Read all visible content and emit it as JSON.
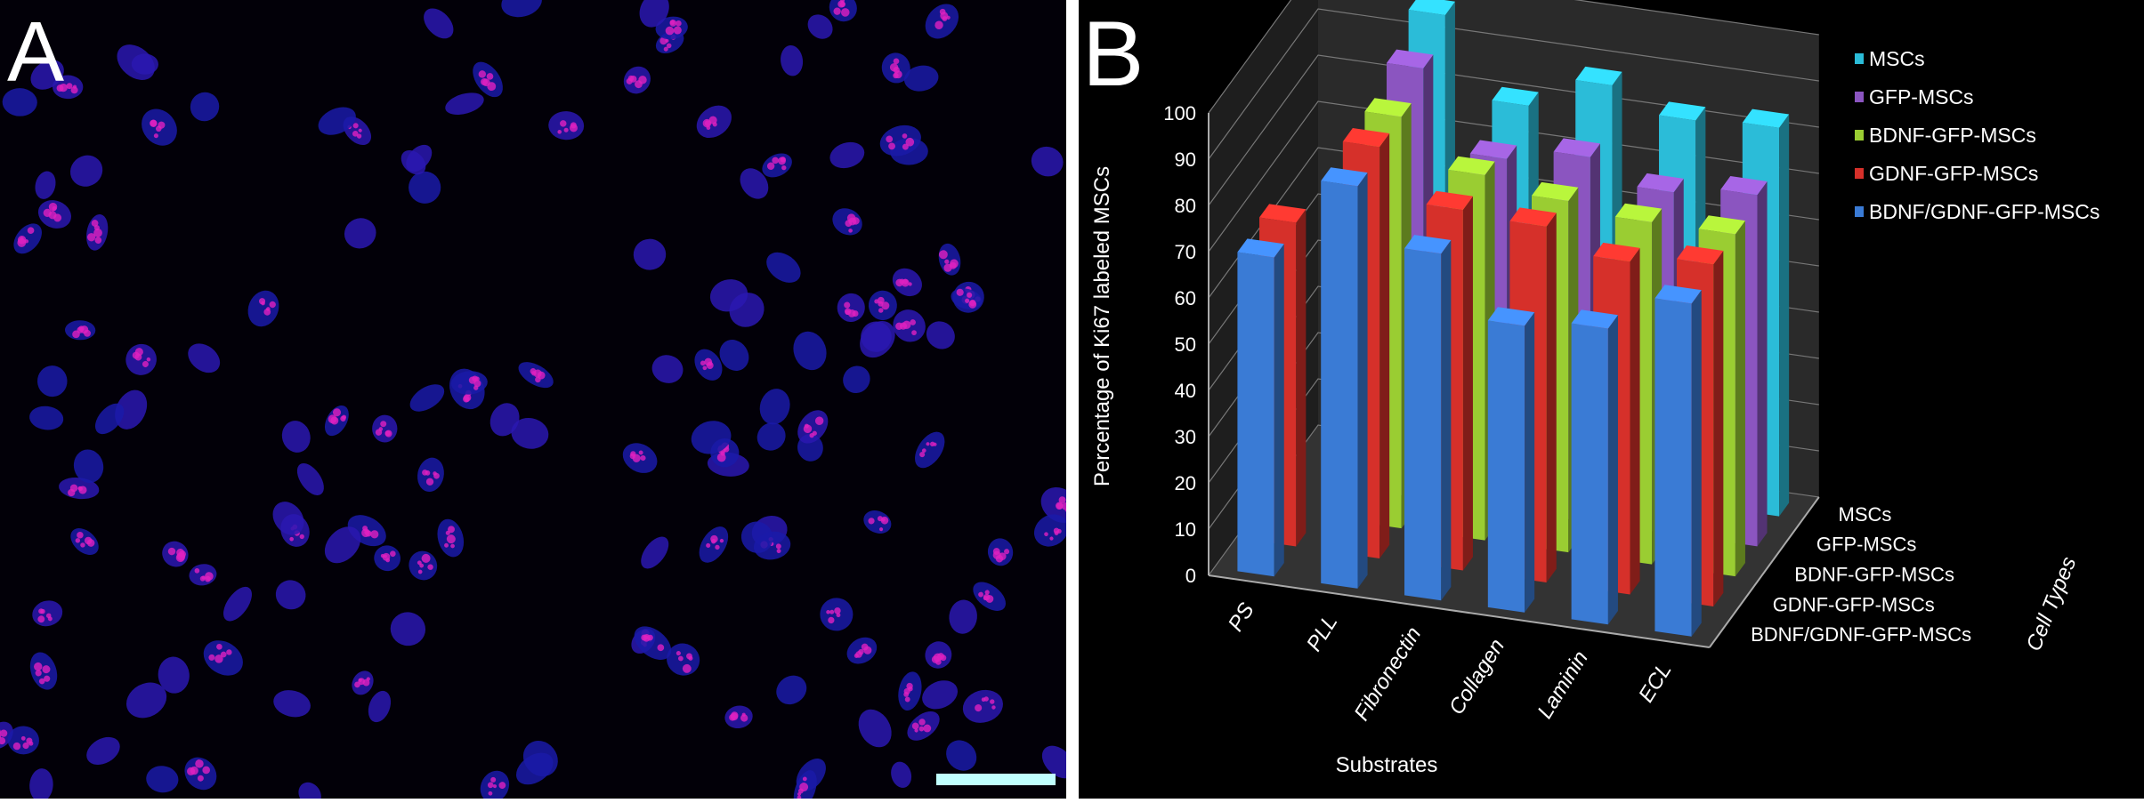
{
  "panel_a": {
    "label": "A",
    "scale_bar_color": "#c0ffff"
  },
  "panel_b": {
    "label": "B"
  },
  "chart_data": {
    "type": "bar",
    "subtype": "3d-clustered",
    "title": "",
    "xlabel": "Substrates",
    "ylabel": "Percentage of Ki67 labeled MSCs",
    "zlabel": "Cell Types",
    "ylim": [
      0,
      100
    ],
    "yticks": [
      0,
      10,
      20,
      30,
      40,
      50,
      60,
      70,
      80,
      90,
      100
    ],
    "grid": true,
    "legend_position": "top-right",
    "categories": [
      "PS",
      "PLL",
      "Fibronectin",
      "Collagen",
      "Laminin",
      "ECL"
    ],
    "series": [
      {
        "name": "MSCs",
        "color": "#2bbcd8",
        "values": [
          null,
          98,
          81,
          88,
          83,
          84
        ]
      },
      {
        "name": "GFP-MSCs",
        "color": "#8b55c0",
        "values": [
          null,
          93,
          76,
          79,
          74,
          76
        ]
      },
      {
        "name": "BDNF-GFP-MSCs",
        "color": "#9acd32",
        "values": [
          null,
          89,
          79,
          76,
          74,
          74
        ]
      },
      {
        "name": "GDNF-GFP-MSCs",
        "color": "#d6302a",
        "values": [
          70,
          89,
          78,
          77,
          72,
          74
        ]
      },
      {
        "name": "BDNF/GDNF-GFP-MSCs",
        "color": "#3a7bd5",
        "values": [
          69,
          87,
          75,
          62,
          64,
          72
        ]
      }
    ]
  }
}
